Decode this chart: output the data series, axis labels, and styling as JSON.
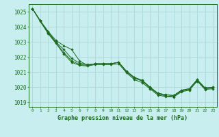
{
  "title": "Graphe pression niveau de la mer (hPa)",
  "background_color": "#c8eef0",
  "grid_color": "#aad8da",
  "line_color": "#1a6b1a",
  "xlim": [
    -0.5,
    23.5
  ],
  "ylim": [
    1018.7,
    1025.5
  ],
  "yticks": [
    1019,
    1020,
    1021,
    1022,
    1023,
    1024,
    1025
  ],
  "xticks": [
    0,
    1,
    2,
    3,
    4,
    5,
    6,
    7,
    8,
    9,
    10,
    11,
    12,
    13,
    14,
    15,
    16,
    17,
    18,
    19,
    20,
    21,
    22,
    23
  ],
  "series": [
    [
      1025.2,
      1024.4,
      1023.7,
      1023.1,
      1022.75,
      1022.5,
      1021.75,
      1021.45,
      1021.55,
      1021.55,
      1021.55,
      1021.65,
      1021.05,
      1020.65,
      1020.45,
      1020.0,
      1019.6,
      1019.5,
      1019.45,
      1019.8,
      1019.9,
      1020.5,
      1019.95,
      1020.0
    ],
    [
      1025.2,
      1024.4,
      1023.65,
      1023.0,
      1022.5,
      1021.9,
      1021.6,
      1021.5,
      1021.55,
      1021.55,
      1021.55,
      1021.65,
      1021.05,
      1020.65,
      1020.45,
      1020.0,
      1019.6,
      1019.5,
      1019.45,
      1019.8,
      1019.9,
      1020.5,
      1019.95,
      1020.0
    ],
    [
      1025.2,
      1024.4,
      1023.6,
      1022.95,
      1022.3,
      1021.75,
      1021.5,
      1021.45,
      1021.55,
      1021.55,
      1021.55,
      1021.65,
      1021.0,
      1020.6,
      1020.4,
      1019.95,
      1019.55,
      1019.42,
      1019.38,
      1019.75,
      1019.85,
      1020.45,
      1019.9,
      1019.95
    ],
    [
      1025.2,
      1024.35,
      1023.55,
      1022.9,
      1022.2,
      1021.65,
      1021.45,
      1021.4,
      1021.5,
      1021.5,
      1021.5,
      1021.55,
      1020.95,
      1020.5,
      1020.3,
      1019.88,
      1019.48,
      1019.38,
      1019.35,
      1019.7,
      1019.8,
      1020.4,
      1019.85,
      1019.9
    ]
  ]
}
